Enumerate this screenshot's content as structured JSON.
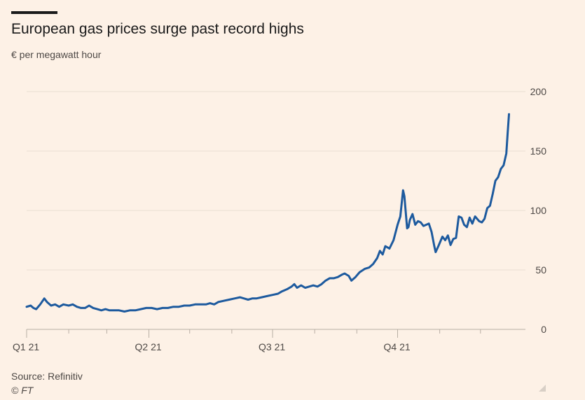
{
  "title": "European gas prices surge past record highs",
  "subtitle": "€ per megawatt hour",
  "source": "Source: Refinitiv",
  "copyright": "© FT",
  "colors": {
    "background": "#fdf1e6",
    "line": "#1d5a9e",
    "grid": "#e9ded3",
    "axis": "#4d4845"
  },
  "chart_data": {
    "type": "line",
    "title": "European gas prices surge past record highs",
    "ylabel": "€ per megawatt hour",
    "ylim": [
      0,
      200
    ],
    "yticks": [
      "0",
      "50",
      "100",
      "150",
      "200"
    ],
    "ytick_values": [
      0,
      50,
      100,
      150,
      200
    ],
    "xticks": [
      "Q1 21",
      "Q2 21",
      "Q3 21",
      "Q4 21"
    ],
    "x_range": [
      "2021-01-01",
      "2021-12-23"
    ],
    "series": [
      {
        "name": "",
        "points": [
          [
            "2021-01-01",
            19
          ],
          [
            "2021-01-04",
            20
          ],
          [
            "2021-01-06",
            18
          ],
          [
            "2021-01-08",
            17
          ],
          [
            "2021-01-11",
            21
          ],
          [
            "2021-01-14",
            26
          ],
          [
            "2021-01-16",
            23
          ],
          [
            "2021-01-19",
            20
          ],
          [
            "2021-01-22",
            21
          ],
          [
            "2021-01-25",
            19
          ],
          [
            "2021-01-28",
            21
          ],
          [
            "2021-02-01",
            20
          ],
          [
            "2021-02-04",
            21
          ],
          [
            "2021-02-07",
            19
          ],
          [
            "2021-02-10",
            18
          ],
          [
            "2021-02-13",
            18
          ],
          [
            "2021-02-16",
            20
          ],
          [
            "2021-02-19",
            18
          ],
          [
            "2021-02-22",
            17
          ],
          [
            "2021-02-25",
            16
          ],
          [
            "2021-02-28",
            17
          ],
          [
            "2021-03-03",
            16
          ],
          [
            "2021-03-06",
            16
          ],
          [
            "2021-03-10",
            16
          ],
          [
            "2021-03-14",
            15
          ],
          [
            "2021-03-18",
            16
          ],
          [
            "2021-03-22",
            16
          ],
          [
            "2021-03-26",
            17
          ],
          [
            "2021-03-30",
            18
          ],
          [
            "2021-04-03",
            18
          ],
          [
            "2021-04-07",
            17
          ],
          [
            "2021-04-11",
            18
          ],
          [
            "2021-04-15",
            18
          ],
          [
            "2021-04-19",
            19
          ],
          [
            "2021-04-23",
            19
          ],
          [
            "2021-04-27",
            20
          ],
          [
            "2021-05-01",
            20
          ],
          [
            "2021-05-05",
            21
          ],
          [
            "2021-05-09",
            21
          ],
          [
            "2021-05-13",
            21
          ],
          [
            "2021-05-16",
            22
          ],
          [
            "2021-05-19",
            21
          ],
          [
            "2021-05-22",
            23
          ],
          [
            "2021-05-26",
            24
          ],
          [
            "2021-05-30",
            25
          ],
          [
            "2021-06-03",
            26
          ],
          [
            "2021-06-07",
            27
          ],
          [
            "2021-06-10",
            26
          ],
          [
            "2021-06-13",
            25
          ],
          [
            "2021-06-16",
            26
          ],
          [
            "2021-06-19",
            26
          ],
          [
            "2021-06-23",
            27
          ],
          [
            "2021-06-27",
            28
          ],
          [
            "2021-07-01",
            29
          ],
          [
            "2021-07-05",
            30
          ],
          [
            "2021-07-08",
            32
          ],
          [
            "2021-07-12",
            34
          ],
          [
            "2021-07-15",
            36
          ],
          [
            "2021-07-17",
            38
          ],
          [
            "2021-07-19",
            35
          ],
          [
            "2021-07-22",
            37
          ],
          [
            "2021-07-25",
            35
          ],
          [
            "2021-07-28",
            36
          ],
          [
            "2021-07-31",
            37
          ],
          [
            "2021-08-03",
            36
          ],
          [
            "2021-08-06",
            38
          ],
          [
            "2021-08-09",
            41
          ],
          [
            "2021-08-12",
            43
          ],
          [
            "2021-08-15",
            43
          ],
          [
            "2021-08-18",
            44
          ],
          [
            "2021-08-21",
            46
          ],
          [
            "2021-08-23",
            47
          ],
          [
            "2021-08-26",
            45
          ],
          [
            "2021-08-28",
            41
          ],
          [
            "2021-08-31",
            44
          ],
          [
            "2021-09-03",
            48
          ],
          [
            "2021-09-07",
            51
          ],
          [
            "2021-09-10",
            52
          ],
          [
            "2021-09-13",
            55
          ],
          [
            "2021-09-16",
            60
          ],
          [
            "2021-09-18",
            66
          ],
          [
            "2021-09-20",
            63
          ],
          [
            "2021-09-22",
            70
          ],
          [
            "2021-09-25",
            68
          ],
          [
            "2021-09-28",
            75
          ],
          [
            "2021-10-01",
            88
          ],
          [
            "2021-10-03",
            95
          ],
          [
            "2021-10-05",
            117
          ],
          [
            "2021-10-06",
            112
          ],
          [
            "2021-10-08",
            85
          ],
          [
            "2021-10-09",
            86
          ],
          [
            "2021-10-10",
            92
          ],
          [
            "2021-10-12",
            97
          ],
          [
            "2021-10-14",
            88
          ],
          [
            "2021-10-16",
            91
          ],
          [
            "2021-10-18",
            90
          ],
          [
            "2021-10-20",
            87
          ],
          [
            "2021-10-24",
            89
          ],
          [
            "2021-10-26",
            82
          ],
          [
            "2021-10-28",
            70
          ],
          [
            "2021-10-29",
            65
          ],
          [
            "2021-10-31",
            70
          ],
          [
            "2021-11-03",
            78
          ],
          [
            "2021-11-05",
            75
          ],
          [
            "2021-11-07",
            79
          ],
          [
            "2021-11-09",
            71
          ],
          [
            "2021-11-11",
            76
          ],
          [
            "2021-11-13",
            77
          ],
          [
            "2021-11-15",
            95
          ],
          [
            "2021-11-17",
            94
          ],
          [
            "2021-11-19",
            88
          ],
          [
            "2021-11-21",
            86
          ],
          [
            "2021-11-23",
            94
          ],
          [
            "2021-11-25",
            89
          ],
          [
            "2021-11-27",
            95
          ],
          [
            "2021-11-30",
            91
          ],
          [
            "2021-12-02",
            90
          ],
          [
            "2021-12-04",
            93
          ],
          [
            "2021-12-06",
            102
          ],
          [
            "2021-12-08",
            104
          ],
          [
            "2021-12-10",
            114
          ],
          [
            "2021-12-12",
            125
          ],
          [
            "2021-12-14",
            128
          ],
          [
            "2021-12-16",
            135
          ],
          [
            "2021-12-18",
            138
          ],
          [
            "2021-12-20",
            148
          ],
          [
            "2021-12-21",
            165
          ],
          [
            "2021-12-22",
            181
          ]
        ]
      }
    ]
  }
}
